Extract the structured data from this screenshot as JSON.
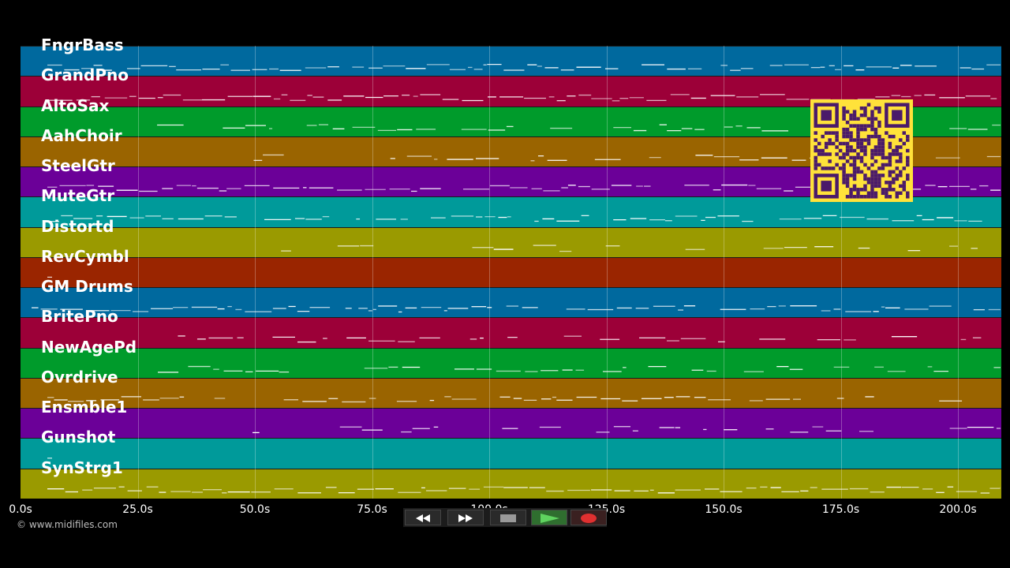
{
  "tracks": [
    {
      "name": "FngrBass",
      "color": "#00699e"
    },
    {
      "name": "GrandPno",
      "color": "#9c0038"
    },
    {
      "name": "AltoSax",
      "color": "#009b2b"
    },
    {
      "name": "AahChoir",
      "color": "#9a6400"
    },
    {
      "name": "SteelGtr",
      "color": "#6b0098"
    },
    {
      "name": "MuteGtr",
      "color": "#009a9a"
    },
    {
      "name": "Distortd",
      "color": "#9a9a00"
    },
    {
      "name": "RevCymbl",
      "color": "#9a2500"
    },
    {
      "name": "GM Drums",
      "color": "#00699e"
    },
    {
      "name": "BritePno",
      "color": "#9c0038"
    },
    {
      "name": "NewAgePd",
      "color": "#009b2b"
    },
    {
      "name": "Ovrdrive",
      "color": "#9a6400"
    },
    {
      "name": "Ensmble1",
      "color": "#6b0098"
    },
    {
      "name": "Gunshot",
      "color": "#009a9a"
    },
    {
      "name": "SynStrg1",
      "color": "#9a9a00"
    }
  ],
  "axis": {
    "ticks": [
      "0.0s",
      "25.0s",
      "50.0s",
      "75.0s",
      "100.0s",
      "125.0s",
      "150.0s",
      "175.0s",
      "200.0s"
    ],
    "max_seconds": 210
  },
  "copyright": "© www.midifiles.com",
  "controls": {
    "rewind": "rewind-icon",
    "fast_forward": "fast-forward-icon",
    "stop": "stop-icon",
    "play": "play-icon",
    "record": "record-icon"
  },
  "colors": {
    "background": "#000000",
    "note": "#ffffff",
    "qr_fg": "#4a1a6a",
    "qr_bg": "#ffe23a"
  }
}
